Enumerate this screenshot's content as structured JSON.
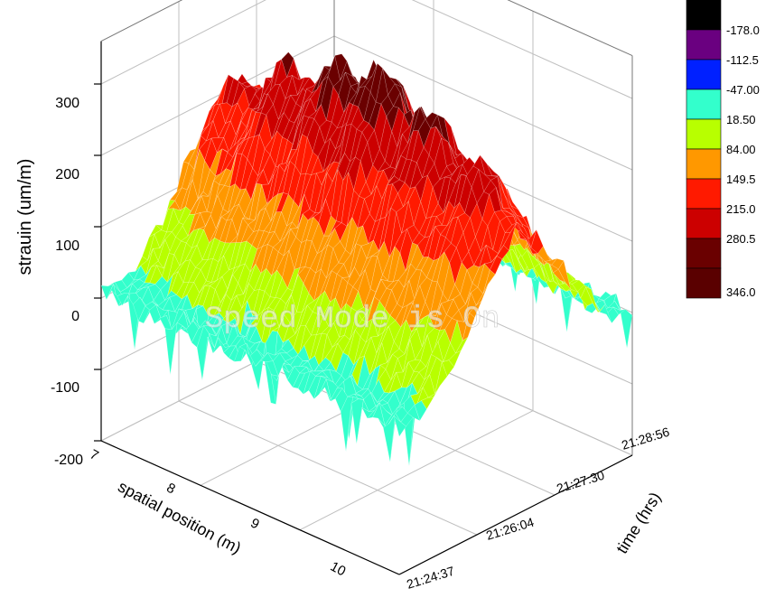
{
  "chart_data": {
    "type": "surface-3d",
    "title": "",
    "zlabel": "strauin (um/m)",
    "xlabel": "spatial position (m)",
    "ylabel": "time (hrs)",
    "zlim": [
      -200,
      350
    ],
    "z_ticks": [
      "300",
      "200",
      "100",
      "0",
      "-100",
      "-200"
    ],
    "x_ticks": [
      "7",
      "8",
      "9",
      "10"
    ],
    "y_ticks": [
      "21:24:37",
      "21:26:04",
      "21:27:30",
      "21:28:56"
    ],
    "grid": true,
    "overlay_text": "Speed Mode is On",
    "colorscale": [
      {
        "label": "",
        "color": "#000000"
      },
      {
        "label": "-178.0",
        "color": "#6a0080"
      },
      {
        "label": "-112.5",
        "color": "#0020ff"
      },
      {
        "label": "-47.00",
        "color": "#33ffcc"
      },
      {
        "label": "18.50",
        "color": "#b8ff00"
      },
      {
        "label": "84.00",
        "color": "#ff9800"
      },
      {
        "label": "149.5",
        "color": "#ff1a00"
      },
      {
        "label": "215.0",
        "color": "#cc0000"
      },
      {
        "label": "280.5",
        "color": "#6a0000"
      }
    ],
    "colorscale_last_label": "346.0",
    "surface_profile": {
      "baseline": 0,
      "peak_max": 330,
      "description_levels": [
        0,
        84,
        149.5,
        215,
        300
      ]
    }
  }
}
